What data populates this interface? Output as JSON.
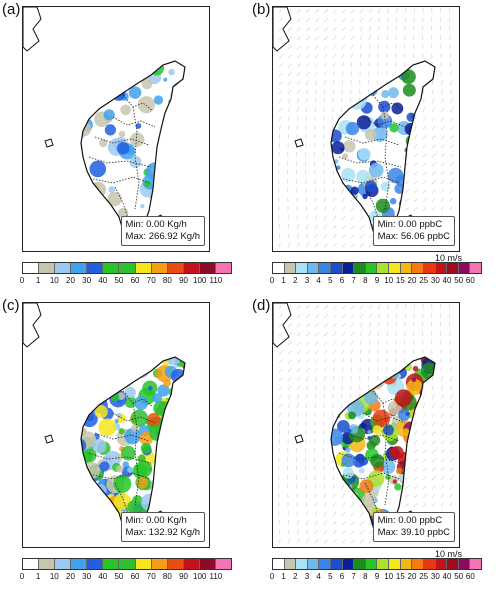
{
  "panels": [
    {
      "id": "a",
      "letter": "(a)",
      "min": "Min: 0.00 Kg/h",
      "max": "Max: 266.92 Kg/h",
      "wind": "",
      "scale": "emis",
      "level": 0.25
    },
    {
      "id": "b",
      "letter": "(b)",
      "min": "Min: 0.00 ppbC",
      "max": "Max: 56.06 ppbC",
      "wind": "10 m/s",
      "scale": "conc",
      "level": 0.3
    },
    {
      "id": "c",
      "letter": "(c)",
      "min": "Min: 0.00 Kg/h",
      "max": "Max: 132.92 Kg/h",
      "wind": "",
      "scale": "emis",
      "level": 0.75
    },
    {
      "id": "d",
      "letter": "(d)",
      "min": "Min: 0.00 ppbC",
      "max": "Max: 39.10 ppbC",
      "wind": "10 m/s",
      "scale": "conc",
      "level": 0.9
    }
  ],
  "colorbars": {
    "emis": {
      "ticks": [
        "0",
        "1",
        "10",
        "20",
        "30",
        "40",
        "50",
        "60",
        "70",
        "80",
        "90",
        "100",
        "110"
      ],
      "colors": [
        "#ffffff",
        "#c8c5ad",
        "#9cc8f0",
        "#3fa2ee",
        "#1f5fe0",
        "#26c626",
        "#2ec02e",
        "#f5e61e",
        "#f59d16",
        "#e84d14",
        "#c2131a",
        "#8c0b28",
        "#f374b4"
      ]
    },
    "conc": {
      "ticks": [
        "0",
        "1",
        "2",
        "3",
        "4",
        "5",
        "6",
        "7",
        "8",
        "9",
        "10",
        "15",
        "20",
        "25",
        "30",
        "40",
        "50",
        "60"
      ],
      "colors": [
        "#ffffff",
        "#c8c5ad",
        "#a9e2f5",
        "#6fb8ee",
        "#3a86e6",
        "#1a4ed0",
        "#0a1e9a",
        "#1c8c1c",
        "#26c626",
        "#a9e22a",
        "#f5e61e",
        "#f5b716",
        "#f57a12",
        "#e83a10",
        "#c2131a",
        "#9b0d1f",
        "#8c0b5e",
        "#f374b4"
      ]
    }
  }
}
